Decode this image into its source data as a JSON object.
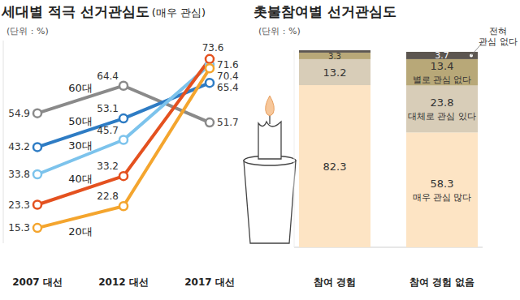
{
  "chart_data": [
    {
      "type": "line",
      "title": "세대별 적극 선거관심도",
      "subtitle": "(매우 관심)",
      "y_label": "(단위 : %)",
      "categories": [
        "2007 대선",
        "2012 대선",
        "2017 대선"
      ],
      "series": [
        {
          "name": "60대",
          "color": "#8a8a8a",
          "values": [
            54.9,
            64.4,
            51.7
          ]
        },
        {
          "name": "50대",
          "color": "#2e7cc4",
          "values": [
            43.2,
            53.1,
            65.4
          ]
        },
        {
          "name": "30대",
          "color": "#7cc3ec",
          "values": [
            33.8,
            45.7,
            71.6
          ]
        },
        {
          "name": "40대",
          "color": "#e4511f",
          "values": [
            23.3,
            33.2,
            73.6
          ]
        },
        {
          "name": "20대",
          "color": "#f4a52e",
          "values": [
            15.3,
            22.8,
            70.4
          ]
        }
      ],
      "ylim": [
        10,
        80
      ],
      "yticks": [],
      "tick_labels": "x",
      "data_labels": true,
      "marker": "circle",
      "grid": false
    },
    {
      "type": "bar",
      "stacked": true,
      "title": "촛불참여별 선거관심도",
      "y_label": "(단위 : %)",
      "categories": [
        "참여 경험",
        "참여 경험 없음"
      ],
      "series": [
        {
          "name": "매우 관심 많다",
          "color": "#fde4c4",
          "values": [
            82.3,
            58.3
          ]
        },
        {
          "name": "대체로 관심 있다",
          "color": "#d8cdb8",
          "values": [
            13.2,
            23.8
          ]
        },
        {
          "name": "별로 관심 없다",
          "color": "#b8a878",
          "values": [
            3.3,
            13.4
          ]
        },
        {
          "name": "전혀 관심 없다",
          "color": "#5c5650",
          "values": [
            1.2,
            3.7
          ],
          "value_labels": [
            null,
            "3.7"
          ]
        }
      ],
      "ylim": [
        0,
        100
      ],
      "yticks": [],
      "tick_labels": "x",
      "data_labels": true,
      "grid": false
    }
  ]
}
